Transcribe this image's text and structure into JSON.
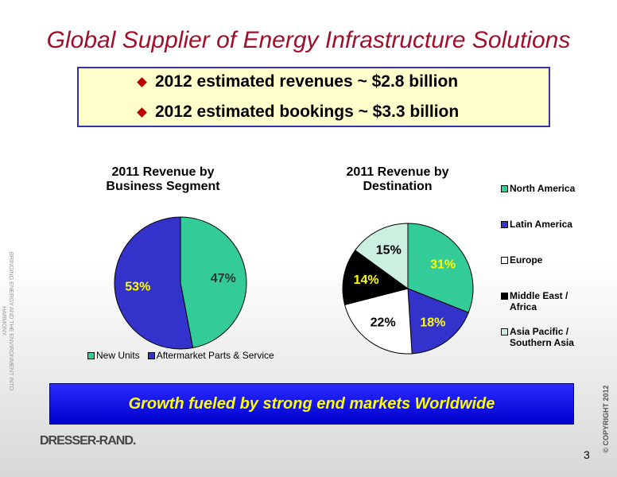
{
  "title": "Global Supplier of Energy Infrastructure Solutions",
  "bullets": [
    "2012 estimated revenues ~ $2.8 billion",
    "2012 estimated bookings ~ $3.3 billion"
  ],
  "chart_data": [
    {
      "type": "pie",
      "title": "2011 Revenue by Business Segment",
      "categories": [
        "New Units",
        "Aftermarket Parts & Service"
      ],
      "values": [
        47,
        53
      ],
      "value_labels": [
        "47%",
        "53%"
      ],
      "colors": [
        "#33cc99",
        "#3333cc"
      ],
      "label_colors": [
        "#333333",
        "#ffff00"
      ],
      "legend": "bottom"
    },
    {
      "type": "pie",
      "title": "2011 Revenue by Destination",
      "categories": [
        "North America",
        "Latin America",
        "Europe",
        "Middle East / Africa",
        "Asia Pacific / Southern Asia"
      ],
      "values": [
        31,
        18,
        22,
        14,
        15
      ],
      "value_labels": [
        "31%",
        "18%",
        "22%",
        "14%",
        "15%"
      ],
      "colors": [
        "#33cc99",
        "#3333cc",
        "#ffffff",
        "#000000",
        "#ccf0e0"
      ],
      "label_colors": [
        "#ffff00",
        "#ffff00",
        "#000000",
        "#ffff00",
        "#000000"
      ],
      "legend": "right"
    }
  ],
  "banner": "Growth fueled by strong end markets Worldwide",
  "logo": "DRESSER-RAND.",
  "page_number": "3",
  "copyright": "© COPYRIGHT 2012",
  "tagline": "BRINGING ENERGY AND THE ENVIRONMENT INTO HARMONY."
}
